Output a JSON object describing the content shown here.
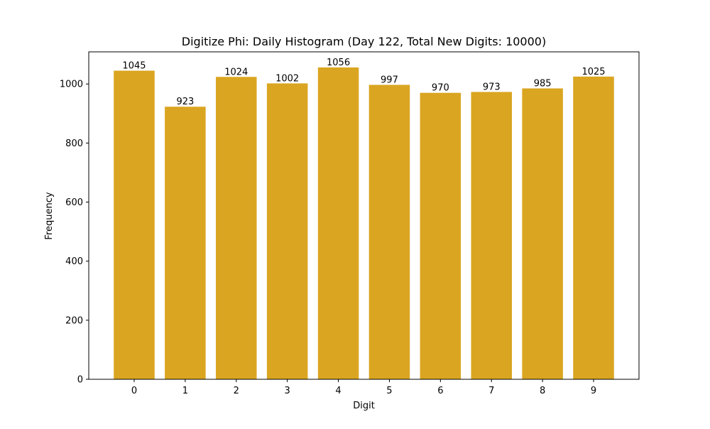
{
  "chart_data": {
    "type": "bar",
    "title": "Digitize Phi: Daily Histogram (Day 122, Total New Digits: 10000)",
    "xlabel": "Digit",
    "ylabel": "Frequency",
    "categories": [
      "0",
      "1",
      "2",
      "3",
      "4",
      "5",
      "6",
      "7",
      "8",
      "9"
    ],
    "values": [
      1045,
      923,
      1024,
      1002,
      1056,
      997,
      970,
      973,
      985,
      1025
    ],
    "bar_labels": [
      "1045",
      "923",
      "1024",
      "1002",
      "1056",
      "997",
      "970",
      "973",
      "985",
      "1025"
    ],
    "yticks": [
      0,
      200,
      400,
      600,
      800,
      1000
    ],
    "ylim": [
      0,
      1108.8
    ],
    "xlim": [
      -0.89,
      9.89
    ],
    "grid": false,
    "legend": null,
    "bar_color": "#DAA520"
  }
}
